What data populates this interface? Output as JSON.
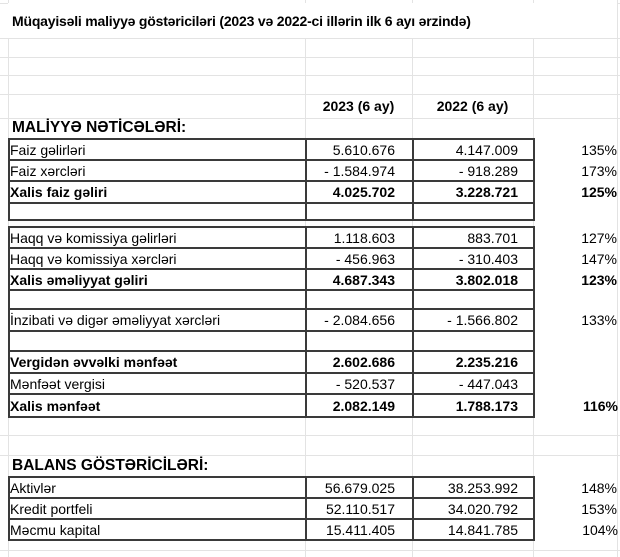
{
  "title": "Müqayisəli maliyyə göstəriciləri (2023 və 2022-ci illərin ilk 6 ayı ərzində)",
  "table": {
    "header": {
      "col_2023": "2023 (6 ay)",
      "col_2022": "2022 (6 ay)"
    },
    "section_finance": "MALİYYƏ NƏTİCƏLƏRİ:",
    "section_balance": "BALANS GÖSTƏRİCİLƏRİ:",
    "blocks": [
      {
        "name": "net-interest-income",
        "rows": [
          {
            "label": "Faiz gəlirləri",
            "y2023": "5.610.676",
            "y2022": "4.147.009",
            "pct": "135%",
            "bold": false
          },
          {
            "label": "Faiz xərcləri",
            "y2023": "- 1.584.974",
            "y2022": "- 918.289",
            "pct": "173%",
            "bold": false
          },
          {
            "label": "Xalis faiz gəliri",
            "y2023": "4.025.702",
            "y2022": "3.228.721",
            "pct": "125%",
            "bold": true
          },
          {
            "label": "",
            "y2023": "",
            "y2022": "",
            "pct": "",
            "bold": false
          }
        ]
      },
      {
        "name": "operating-income-and-profit",
        "rows": [
          {
            "label": "Haqq və komissiya gəlirləri",
            "y2023": "1.118.603",
            "y2022": "883.701",
            "pct": "127%",
            "bold": false
          },
          {
            "label": "Haqq və komissiya xərcləri",
            "y2023": "- 456.963",
            "y2022": "- 310.403",
            "pct": "147%",
            "bold": false
          },
          {
            "label": "Xalis əməliyyat gəliri",
            "y2023": "4.687.343",
            "y2022": "3.802.018",
            "pct": "123%",
            "bold": true
          },
          {
            "label": "",
            "y2023": "",
            "y2022": "",
            "pct": "",
            "bold": false
          },
          {
            "label": "İnzibati və digər əməliyyat xərcləri",
            "y2023": "- 2.084.656",
            "y2022": "- 1.566.802",
            "pct": "133%",
            "bold": false
          },
          {
            "label": "",
            "y2023": "",
            "y2022": "",
            "pct": "",
            "bold": false
          },
          {
            "label": "Vergidən əvvəlki mənfəət",
            "y2023": "2.602.686",
            "y2022": "2.235.216",
            "pct": "",
            "bold": true
          },
          {
            "label": "Mənfəət vergisi",
            "y2023": "- 520.537",
            "y2022": "- 447.043",
            "pct": "",
            "bold": false
          },
          {
            "label": "Xalis mənfəət",
            "y2023": "2.082.149",
            "y2022": "1.788.173",
            "pct": "116%",
            "bold": true
          }
        ]
      },
      {
        "name": "balance-indicators",
        "rows": [
          {
            "label": "Aktivlər",
            "y2023": "56.679.025",
            "y2022": "38.253.992",
            "pct": "148%",
            "bold": false
          },
          {
            "label": "Kredit portfeli",
            "y2023": "52.110.517",
            "y2022": "34.020.792",
            "pct": "153%",
            "bold": false
          },
          {
            "label": "Məcmu kapital",
            "y2023": "15.411.405",
            "y2022": "14.841.785",
            "pct": "104%",
            "bold": false
          }
        ]
      }
    ]
  },
  "colors": {
    "cell_border": "#3a3a3a",
    "gridline": "#e3e3e3",
    "text": "#000000",
    "background": "#ffffff"
  }
}
